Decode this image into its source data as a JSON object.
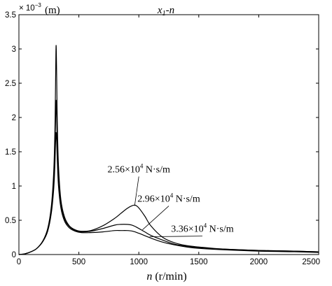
{
  "chart_data": {
    "type": "line",
    "title": "x1-n",
    "title_parts": {
      "var": "x",
      "sub": "1",
      "dash": "-",
      "param": "n"
    },
    "xlabel": "n (r/min)",
    "xlabel_parts": {
      "var": "n",
      "unit": " (r/min)"
    },
    "ylabel": "(m)",
    "y_multiplier": {
      "prefix": "× 10",
      "exp": "−3"
    },
    "xlim": [
      0,
      2500
    ],
    "ylim": [
      0,
      3.5
    ],
    "xticks": [
      0,
      500,
      1000,
      1500,
      2000,
      2500
    ],
    "yticks": [
      0,
      0.5,
      1,
      1.5,
      2,
      2.5,
      3,
      3.5
    ],
    "ytick_labels": [
      "0",
      "0.5",
      "1",
      "1.5",
      "2",
      "2.5",
      "3",
      "3.5"
    ],
    "grid": false,
    "line_color": "#000000",
    "series": [
      {
        "name": "2.56×10^4 N·s/m",
        "label_parts": {
          "base": "2.56×10",
          "exp": "4",
          "unit": " N·s/m"
        },
        "x": [
          0,
          50,
          100,
          150,
          200,
          240,
          270,
          290,
          300,
          305,
          310,
          315,
          320,
          330,
          350,
          380,
          420,
          470,
          520,
          600,
          700,
          800,
          850,
          900,
          940,
          970,
          1000,
          1050,
          1100,
          1200,
          1300,
          1400,
          1500,
          1700,
          2000,
          2300,
          2500
        ],
        "y": [
          0,
          0.01,
          0.04,
          0.09,
          0.2,
          0.38,
          0.7,
          1.2,
          1.8,
          2.4,
          3.05,
          2.6,
          1.95,
          1.3,
          0.8,
          0.55,
          0.42,
          0.36,
          0.34,
          0.35,
          0.42,
          0.53,
          0.6,
          0.67,
          0.71,
          0.72,
          0.68,
          0.56,
          0.42,
          0.25,
          0.17,
          0.13,
          0.11,
          0.08,
          0.06,
          0.05,
          0.04
        ]
      },
      {
        "name": "2.96×10^4 N·s/m",
        "label_parts": {
          "base": "2.96×10",
          "exp": "4",
          "unit": " N·s/m"
        },
        "x": [
          0,
          50,
          100,
          150,
          200,
          240,
          270,
          290,
          300,
          305,
          310,
          315,
          320,
          330,
          350,
          380,
          420,
          470,
          520,
          600,
          700,
          800,
          850,
          900,
          940,
          980,
          1050,
          1100,
          1200,
          1300,
          1400,
          1500,
          1700,
          2000,
          2300,
          2500
        ],
        "y": [
          0,
          0.01,
          0.04,
          0.09,
          0.2,
          0.36,
          0.65,
          1.05,
          1.5,
          1.9,
          2.25,
          2.0,
          1.6,
          1.15,
          0.75,
          0.52,
          0.41,
          0.35,
          0.33,
          0.34,
          0.38,
          0.43,
          0.44,
          0.44,
          0.43,
          0.4,
          0.33,
          0.28,
          0.21,
          0.15,
          0.12,
          0.1,
          0.08,
          0.06,
          0.05,
          0.04
        ]
      },
      {
        "name": "3.36×10^4 N·s/m",
        "label_parts": {
          "base": "3.36×10",
          "exp": "4",
          "unit": " N·s/m"
        },
        "x": [
          0,
          50,
          100,
          150,
          200,
          240,
          270,
          290,
          300,
          305,
          310,
          315,
          320,
          330,
          350,
          380,
          420,
          470,
          520,
          600,
          700,
          800,
          850,
          900,
          950,
          1000,
          1100,
          1200,
          1300,
          1400,
          1500,
          1700,
          2000,
          2300,
          2500
        ],
        "y": [
          0,
          0.01,
          0.04,
          0.09,
          0.19,
          0.34,
          0.6,
          0.95,
          1.3,
          1.6,
          1.78,
          1.65,
          1.38,
          1.0,
          0.68,
          0.49,
          0.39,
          0.34,
          0.32,
          0.32,
          0.33,
          0.35,
          0.35,
          0.35,
          0.34,
          0.31,
          0.24,
          0.18,
          0.14,
          0.11,
          0.09,
          0.07,
          0.05,
          0.04,
          0.03
        ]
      }
    ],
    "annotations": [
      {
        "series": 0,
        "label_x": 1000,
        "label_y": 1.2,
        "point_x": 965,
        "point_y": 0.71
      },
      {
        "series": 1,
        "label_x": 1250,
        "label_y": 0.77,
        "point_x": 1030,
        "point_y": 0.36
      },
      {
        "series": 2,
        "label_x": 1530,
        "label_y": 0.33,
        "point_x": 1090,
        "point_y": 0.26
      }
    ]
  }
}
